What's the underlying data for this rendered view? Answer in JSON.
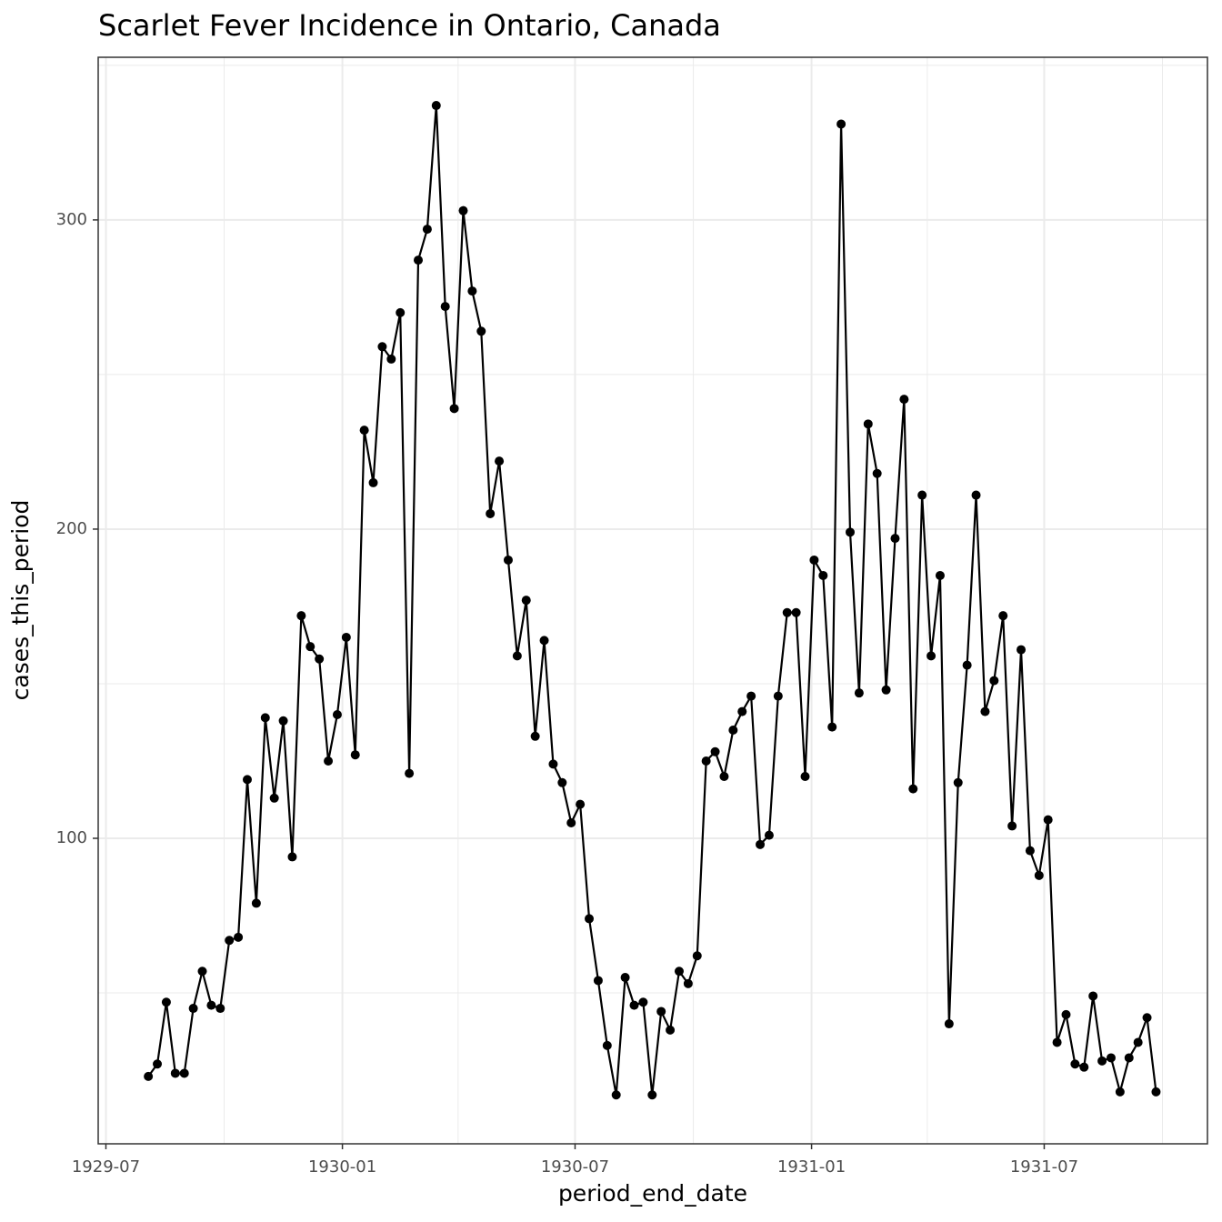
{
  "chart_data": {
    "type": "line",
    "title": "Scarlet Fever Incidence in Ontario, Canada",
    "x_label": "period_end_date",
    "y_label": "cases_this_period",
    "color": "#000000",
    "markers": true,
    "grid": true,
    "xlim": [
      "1929-06-25",
      "1931-11-05"
    ],
    "xticks": [
      {
        "value": "1929-07-01",
        "label": "1929-07"
      },
      {
        "value": "1930-01-01",
        "label": "1930-01"
      },
      {
        "value": "1930-07-01",
        "label": "1930-07"
      },
      {
        "value": "1931-01-01",
        "label": "1931-01"
      },
      {
        "value": "1931-07-01",
        "label": "1931-07"
      }
    ],
    "minor_xticks": [
      "1929-10-01",
      "1930-04-01",
      "1930-10-01",
      "1931-04-01",
      "1931-10-01"
    ],
    "ylim": [
      1.2,
      352.6
    ],
    "yticks": [
      100,
      200,
      300
    ],
    "minor_yticks": [
      50,
      150,
      250,
      350
    ],
    "x": [
      "1929-08-03",
      "1929-08-10",
      "1929-08-17",
      "1929-08-24",
      "1929-08-31",
      "1929-09-07",
      "1929-09-14",
      "1929-09-21",
      "1929-09-28",
      "1929-10-05",
      "1929-10-12",
      "1929-10-19",
      "1929-10-26",
      "1929-11-02",
      "1929-11-09",
      "1929-11-16",
      "1929-11-23",
      "1929-11-30",
      "1929-12-07",
      "1929-12-14",
      "1929-12-21",
      "1929-12-28",
      "1930-01-04",
      "1930-01-11",
      "1930-01-18",
      "1930-01-25",
      "1930-02-01",
      "1930-02-08",
      "1930-02-15",
      "1930-02-22",
      "1930-03-01",
      "1930-03-08",
      "1930-03-15",
      "1930-03-22",
      "1930-03-29",
      "1930-04-05",
      "1930-04-12",
      "1930-04-19",
      "1930-04-26",
      "1930-05-03",
      "1930-05-10",
      "1930-05-17",
      "1930-05-24",
      "1930-05-31",
      "1930-06-07",
      "1930-06-14",
      "1930-06-21",
      "1930-06-28",
      "1930-07-05",
      "1930-07-12",
      "1930-07-19",
      "1930-07-26",
      "1930-08-02",
      "1930-08-09",
      "1930-08-16",
      "1930-08-23",
      "1930-08-30",
      "1930-09-06",
      "1930-09-13",
      "1930-09-20",
      "1930-09-27",
      "1930-10-04",
      "1930-10-11",
      "1930-10-18",
      "1930-10-25",
      "1930-11-01",
      "1930-11-08",
      "1930-11-15",
      "1930-11-22",
      "1930-11-29",
      "1930-12-06",
      "1930-12-13",
      "1930-12-20",
      "1930-12-27",
      "1931-01-03",
      "1931-01-10",
      "1931-01-17",
      "1931-01-24",
      "1931-01-31",
      "1931-02-07",
      "1931-02-14",
      "1931-02-21",
      "1931-02-28",
      "1931-03-07",
      "1931-03-14",
      "1931-03-21",
      "1931-03-28",
      "1931-04-04",
      "1931-04-11",
      "1931-04-18",
      "1931-04-25",
      "1931-05-02",
      "1931-05-09",
      "1931-05-16",
      "1931-05-23",
      "1931-05-30",
      "1931-06-06",
      "1931-06-13",
      "1931-06-20",
      "1931-06-27",
      "1931-07-04",
      "1931-07-11",
      "1931-07-18",
      "1931-07-25",
      "1931-08-01",
      "1931-08-08",
      "1931-08-15",
      "1931-08-22",
      "1931-08-29",
      "1931-09-05",
      "1931-09-12",
      "1931-09-19",
      "1931-09-26"
    ],
    "values": [
      23,
      27,
      47,
      24,
      24,
      45,
      57,
      46,
      45,
      67,
      68,
      119,
      79,
      139,
      113,
      138,
      94,
      172,
      162,
      158,
      125,
      140,
      165,
      127,
      232,
      215,
      259,
      255,
      270,
      121,
      287,
      297,
      337,
      272,
      239,
      303,
      277,
      264,
      205,
      222,
      190,
      159,
      177,
      133,
      164,
      124,
      118,
      105,
      111,
      74,
      54,
      33,
      17,
      55,
      46,
      47,
      17,
      44,
      38,
      57,
      53,
      62,
      125,
      128,
      120,
      135,
      141,
      146,
      98,
      101,
      146,
      173,
      173,
      120,
      190,
      185,
      136,
      331,
      199,
      147,
      234,
      218,
      148,
      197,
      242,
      116,
      211,
      159,
      185,
      40,
      118,
      156,
      211,
      141,
      151,
      172,
      104,
      161,
      96,
      88,
      106,
      34,
      43,
      27,
      26,
      49,
      28,
      29,
      18,
      29,
      34,
      42,
      18
    ]
  }
}
